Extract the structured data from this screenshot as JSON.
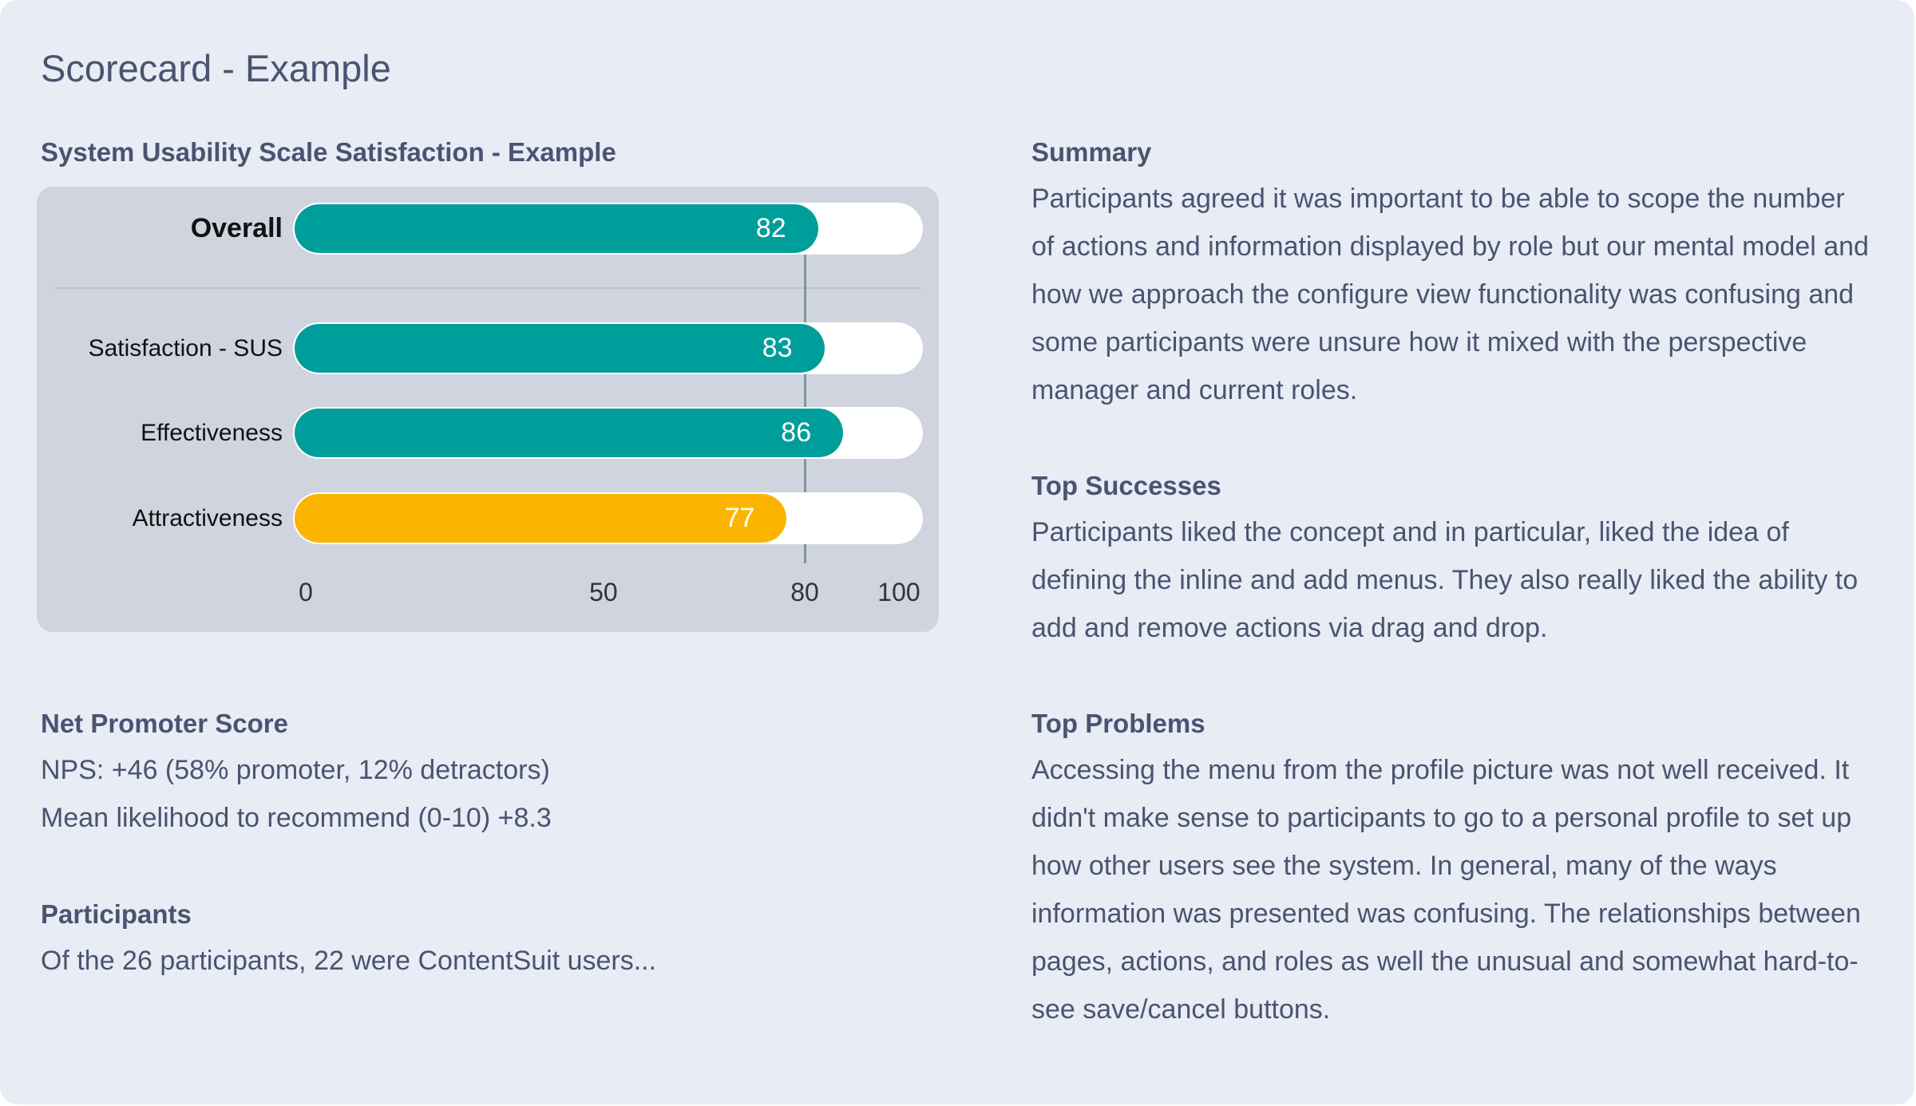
{
  "title": "Scorecard - Example",
  "sus": {
    "heading": "System Usability Scale Satisfaction - Example"
  },
  "chart_data": {
    "type": "bar",
    "orientation": "horizontal",
    "categories": [
      "Overall",
      "Satisfaction - SUS",
      "Effectiveness",
      "Attractiveness"
    ],
    "values": [
      82,
      83,
      86,
      77
    ],
    "colors": [
      "#009e9a",
      "#009e9a",
      "#009e9a",
      "#fbb500"
    ],
    "xlim": [
      0,
      100
    ],
    "ticks": [
      "0",
      "50",
      "80",
      "100"
    ],
    "tick_values": [
      0,
      50,
      80,
      100
    ],
    "reference_line": 80,
    "title": "",
    "xlabel": "",
    "ylabel": ""
  },
  "nps": {
    "heading": "Net Promoter Score",
    "lines": [
      "NPS: +46 (58% promoter, 12% detractors)",
      "Mean likelihood to recommend (0-10) +8.3"
    ]
  },
  "participants": {
    "heading": "Participants",
    "lines": [
      "Of the 26 participants, 22 were ContentSuit users..."
    ]
  },
  "summary": {
    "heading": "Summary",
    "lines": [
      "Participants agreed it was important to be able to scope the number",
      "of actions and information displayed by role but our mental model and",
      "how we approach the configure view functionality was confusing and",
      "some participants were unsure how it mixed with the perspective",
      "manager and current roles."
    ]
  },
  "successes": {
    "heading": "Top Successes",
    "lines": [
      "Participants liked the concept and in particular, liked the idea of",
      "defining the inline and add menus. They also really liked the ability to",
      "add and remove actions via drag and drop."
    ]
  },
  "problems": {
    "heading": "Top Problems",
    "lines": [
      "Accessing the menu from the profile picture was not well received. It",
      "didn't make sense to participants to go to a personal profile to set up",
      "how other users see the system. In general, many of the ways",
      "information was presented was confusing. The relationships between",
      "pages, actions, and roles as well the unusual and somewhat hard-to-",
      "see save/cancel buttons."
    ]
  }
}
